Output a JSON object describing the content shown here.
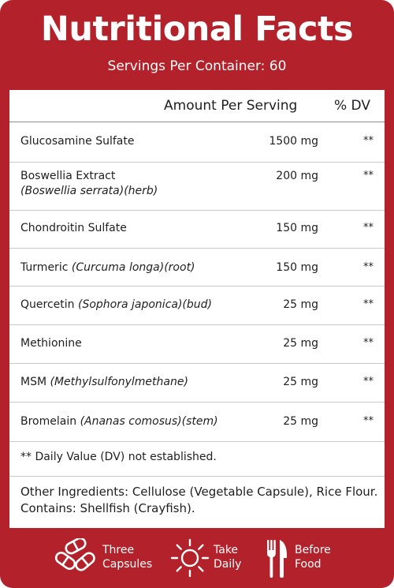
{
  "header": {
    "title": "Nutritional Facts",
    "servings": "Servings Per Container: 60"
  },
  "columns": {
    "amount": "Amount Per Serving",
    "dv": "% DV"
  },
  "rows": [
    {
      "name": "Glucosamine Sulfate",
      "latin": "",
      "amount": "1500 mg",
      "dv": "**"
    },
    {
      "name": "Boswellia Extract",
      "latin": "(Boswellia serrata)(herb)",
      "amount": "200 mg",
      "dv": "**"
    },
    {
      "name": "Chondroitin Sulfate",
      "latin": "",
      "amount": "150 mg",
      "dv": "**"
    },
    {
      "name": "Turmeric",
      "latin": "(Curcuma longa)(root)",
      "amount": "150 mg",
      "dv": "**"
    },
    {
      "name": "Quercetin",
      "latin": "(Sophora japonica)(bud)",
      "amount": "25 mg",
      "dv": "**"
    },
    {
      "name": "Methionine",
      "latin": "",
      "amount": "25 mg",
      "dv": "**"
    },
    {
      "name": "MSM",
      "latin": "(Methylsulfonylmethane)",
      "amount": "25 mg",
      "dv": "**"
    },
    {
      "name": "Bromelain",
      "latin": "(Ananas comosus)(stem)",
      "amount": "25 mg",
      "dv": "**"
    }
  ],
  "footnote": "** Daily Value (DV) not established.",
  "other_ingredients": "Other Ingredients: Cellulose (Vegetable Capsule), Rice Flour. Contains: Shellfish (Crayfish).",
  "icons": [
    {
      "icon": "capsules-icon",
      "line1": "Three",
      "line2": "Capsules"
    },
    {
      "icon": "sun-icon",
      "line1": "Take",
      "line2": "Daily"
    },
    {
      "icon": "fork-knife-icon",
      "line1": "Before",
      "line2": "Food"
    }
  ],
  "colors": {
    "brand_red": "#b3222a",
    "text": "#1e1e1e"
  }
}
